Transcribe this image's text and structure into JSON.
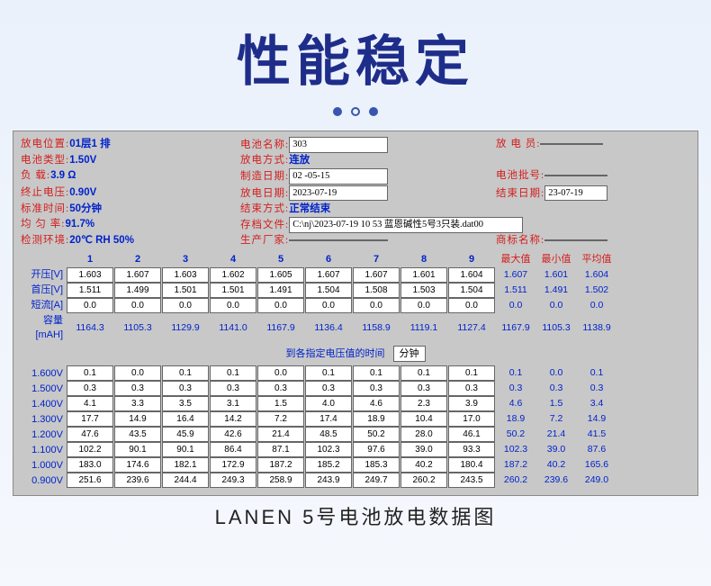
{
  "hero": {
    "title": "性能稳定"
  },
  "top": {
    "l1a": "放电位置:",
    "v1a": "01层1 排",
    "l1b": "电池名称:",
    "v1b": "303",
    "l1c": "放 电 员:",
    "v1c": "",
    "l2a": "电池类型:",
    "v2a": "1.50V",
    "l2b": "放电方式:",
    "v2b": "连放",
    "l3a": "负   载:",
    "v3a": "3.9 Ω",
    "l3b": "制造日期:",
    "v3b": "02 -05-15",
    "l3c": "电池批号:",
    "v3c": "",
    "l4a": "终止电压:",
    "v4a": "0.90V",
    "l4b": "放电日期:",
    "v4b": "2023-07-19",
    "l4c": "结束日期:",
    "v4c": "23-07-19",
    "l5a": "标准时间:",
    "v5a": "50分钟",
    "l5b": "结束方式:",
    "v5b": "正常结束",
    "l6a": "均 匀 率:",
    "v6a": "91.7%",
    "l6b": "存档文件:",
    "v6b": "C:\\nj\\2023-07-19 10 53 蓝恩碱性5号3只装.dat00",
    "l7a": "检测环境:",
    "v7a": "20℃  RH 50%",
    "l7b": "生产厂家:",
    "v7b": "",
    "l7c": "商标名称:",
    "v7c": ""
  },
  "cols": [
    "1",
    "2",
    "3",
    "4",
    "5",
    "6",
    "7",
    "8",
    "9"
  ],
  "stats": [
    "最大值",
    "最小值",
    "平均值"
  ],
  "rows1": {
    "开压[V]": [
      "1.603",
      "1.607",
      "1.603",
      "1.602",
      "1.605",
      "1.607",
      "1.607",
      "1.601",
      "1.604",
      "1.607",
      "1.601",
      "1.604"
    ],
    "首压[V]": [
      "1.511",
      "1.499",
      "1.501",
      "1.501",
      "1.491",
      "1.504",
      "1.508",
      "1.503",
      "1.504",
      "1.511",
      "1.491",
      "1.502"
    ],
    "短流[A]": [
      "0.0",
      "0.0",
      "0.0",
      "0.0",
      "0.0",
      "0.0",
      "0.0",
      "0.0",
      "0.0",
      "0.0",
      "0.0",
      "0.0"
    ],
    "容量[mAH]": [
      "1164.3",
      "1105.3",
      "1129.9",
      "1141.0",
      "1167.9",
      "1136.4",
      "1158.9",
      "1119.1",
      "1127.4",
      "1167.9",
      "1105.3",
      "1138.9"
    ]
  },
  "mid": {
    "text": "到各指定电压值的时间",
    "unit": "分钟"
  },
  "rows2": {
    "1.600V": [
      "0.1",
      "0.0",
      "0.1",
      "0.1",
      "0.0",
      "0.1",
      "0.1",
      "0.1",
      "0.1",
      "0.1",
      "0.0",
      "0.1"
    ],
    "1.500V": [
      "0.3",
      "0.3",
      "0.3",
      "0.3",
      "0.3",
      "0.3",
      "0.3",
      "0.3",
      "0.3",
      "0.3",
      "0.3",
      "0.3"
    ],
    "1.400V": [
      "4.1",
      "3.3",
      "3.5",
      "3.1",
      "1.5",
      "4.0",
      "4.6",
      "2.3",
      "3.9",
      "4.6",
      "1.5",
      "3.4"
    ],
    "1.300V": [
      "17.7",
      "14.9",
      "16.4",
      "14.2",
      "7.2",
      "17.4",
      "18.9",
      "10.4",
      "17.0",
      "18.9",
      "7.2",
      "14.9"
    ],
    "1.200V": [
      "47.6",
      "43.5",
      "45.9",
      "42.6",
      "21.4",
      "48.5",
      "50.2",
      "28.0",
      "46.1",
      "50.2",
      "21.4",
      "41.5"
    ],
    "1.100V": [
      "102.2",
      "90.1",
      "90.1",
      "86.4",
      "87.1",
      "102.3",
      "97.6",
      "39.0",
      "93.3",
      "102.3",
      "39.0",
      "87.6"
    ],
    "1.000V": [
      "183.0",
      "174.6",
      "182.1",
      "172.9",
      "187.2",
      "185.2",
      "185.3",
      "40.2",
      "180.4",
      "187.2",
      "40.2",
      "165.6"
    ],
    "0.900V": [
      "251.6",
      "239.6",
      "244.4",
      "249.3",
      "258.9",
      "243.9",
      "249.7",
      "260.2",
      "243.5",
      "260.2",
      "239.6",
      "249.0"
    ]
  },
  "footer": "LANEN 5号电池放电数据图",
  "style": {
    "accent": "#1f2d8a",
    "blue": "#0022cc",
    "red": "#d41d1d"
  }
}
